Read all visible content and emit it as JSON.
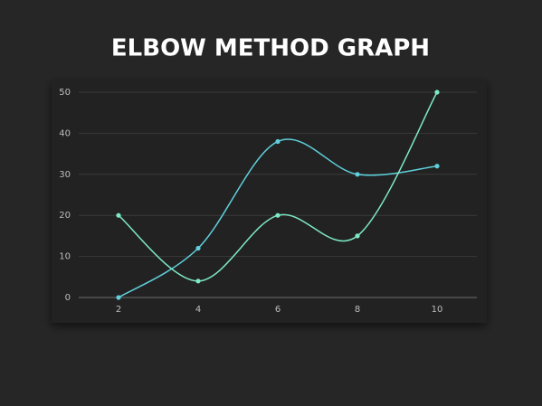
{
  "chart_data": {
    "type": "line",
    "title": "ELBOW METHOD GRAPH",
    "x": [
      2,
      4,
      6,
      8,
      10
    ],
    "series": [
      {
        "color": "#5fd0dc",
        "values": [
          0,
          12,
          38,
          30,
          32
        ]
      },
      {
        "color": "#7eeac4",
        "values": [
          20,
          4,
          20,
          15,
          50
        ]
      }
    ],
    "xlim": [
      1,
      11
    ],
    "xticks": [
      2,
      4,
      6,
      8,
      10
    ],
    "ylim": [
      0,
      50
    ],
    "yticks": [
      0,
      10,
      20,
      30,
      40,
      50
    ],
    "grid": true,
    "smooth": true
  }
}
